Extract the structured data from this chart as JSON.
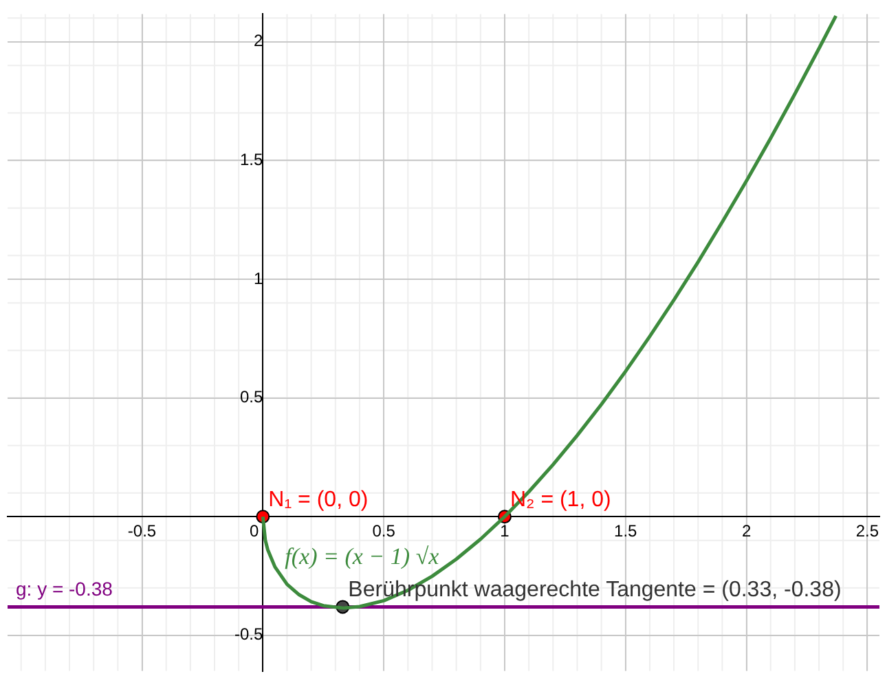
{
  "chart_data": {
    "type": "line",
    "xlim": [
      -1.056,
      2.55
    ],
    "ylim": [
      -0.65,
      2.117
    ],
    "xticks": [
      -0.5,
      0,
      0.5,
      1,
      1.5,
      2,
      2.5
    ],
    "yticks": [
      -0.5,
      0.5,
      1,
      1.5,
      2
    ],
    "grid": true,
    "legend": false,
    "series": [
      {
        "color": "#3d8b3d",
        "x": [
          0,
          0.01,
          0.02,
          0.05,
          0.1,
          0.15,
          0.2,
          0.25,
          0.333,
          0.4,
          0.5,
          0.6,
          0.7,
          0.8,
          0.9,
          1,
          1.1,
          1.2,
          1.3,
          1.4,
          1.5,
          1.6,
          1.7,
          1.8,
          1.9,
          2,
          2.1,
          2.2,
          2.3,
          2.37
        ],
        "values": [
          0,
          -0.099,
          -0.139,
          -0.212,
          -0.285,
          -0.329,
          -0.358,
          -0.375,
          -0.385,
          -0.379,
          -0.354,
          -0.31,
          -0.251,
          -0.179,
          -0.095,
          0,
          0.105,
          0.219,
          0.342,
          0.473,
          0.612,
          0.759,
          0.913,
          1.073,
          1.241,
          1.414,
          1.594,
          1.78,
          1.972,
          2.109
        ]
      },
      {
        "type": "scatter",
        "marker": "circle",
        "color": "#ff0000",
        "x": [
          0,
          1
        ],
        "values": [
          0,
          0
        ]
      },
      {
        "type": "scatter",
        "marker": "circle",
        "color": "#444444",
        "x": [
          0.33
        ],
        "values": [
          -0.38
        ]
      }
    ],
    "ref_lines": [
      {
        "axis": "y",
        "value": -0.38,
        "label": "g: y = -0.38",
        "color": "#800080"
      }
    ],
    "annotations": [
      {
        "text": "N₁ = (0, 0)",
        "x": 0,
        "y": 0
      },
      {
        "text": "N₂ = (1, 0)",
        "x": 1,
        "y": 0
      },
      {
        "text": "Berührpunkt waagerechte Tangente = (0.33, -0.38)",
        "x": 0.33,
        "y": -0.38
      },
      "f(x) = (x − 1) √x"
    ]
  }
}
